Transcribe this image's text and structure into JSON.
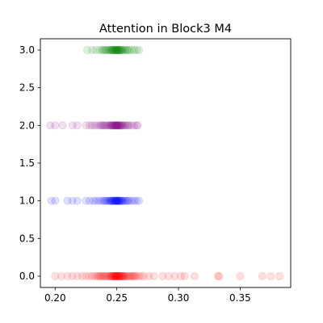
{
  "chart_data": {
    "type": "scatter",
    "title": "Attention in Block3 M4",
    "xlabel": "",
    "ylabel": "",
    "xlim": [
      0.188,
      0.391
    ],
    "ylim": [
      -0.15,
      3.15
    ],
    "xticks": [
      0.2,
      0.25,
      0.3,
      0.35
    ],
    "xtick_labels": [
      "0.20",
      "0.25",
      "0.30",
      "0.35"
    ],
    "yticks": [
      0.0,
      0.5,
      1.0,
      1.5,
      2.0,
      2.5,
      3.0
    ],
    "ytick_labels": [
      "0.0",
      "0.5",
      "1.0",
      "1.5",
      "2.0",
      "2.5",
      "3.0"
    ],
    "grid": false,
    "legend": "none",
    "series": [
      {
        "y": 0,
        "color": "#ff0000",
        "alpha": 0.12,
        "x": [
          0.2,
          0.205,
          0.21,
          0.214,
          0.218,
          0.222,
          0.225,
          0.228,
          0.23,
          0.232,
          0.234,
          0.235,
          0.236,
          0.237,
          0.238,
          0.239,
          0.24,
          0.241,
          0.242,
          0.243,
          0.244,
          0.245,
          0.245,
          0.246,
          0.246,
          0.247,
          0.247,
          0.248,
          0.248,
          0.248,
          0.249,
          0.249,
          0.249,
          0.25,
          0.25,
          0.25,
          0.25,
          0.251,
          0.251,
          0.251,
          0.252,
          0.252,
          0.252,
          0.253,
          0.253,
          0.254,
          0.254,
          0.255,
          0.255,
          0.256,
          0.256,
          0.257,
          0.258,
          0.259,
          0.26,
          0.261,
          0.262,
          0.263,
          0.264,
          0.265,
          0.266,
          0.268,
          0.27,
          0.272,
          0.276,
          0.28,
          0.287,
          0.292,
          0.297,
          0.302,
          0.305,
          0.313,
          0.332,
          0.333,
          0.35,
          0.368,
          0.375,
          0.382
        ]
      },
      {
        "y": 1,
        "color": "#0000ff",
        "alpha": 0.12,
        "x": [
          0.197,
          0.2,
          0.21,
          0.214,
          0.218,
          0.225,
          0.228,
          0.231,
          0.233,
          0.235,
          0.237,
          0.239,
          0.24,
          0.241,
          0.242,
          0.243,
          0.244,
          0.245,
          0.245,
          0.246,
          0.246,
          0.247,
          0.247,
          0.248,
          0.248,
          0.249,
          0.249,
          0.249,
          0.25,
          0.25,
          0.25,
          0.251,
          0.251,
          0.251,
          0.252,
          0.252,
          0.253,
          0.253,
          0.254,
          0.254,
          0.255,
          0.256,
          0.257,
          0.258,
          0.259,
          0.26,
          0.262,
          0.264,
          0.266,
          0.268
        ]
      },
      {
        "y": 2,
        "color": "#800080",
        "alpha": 0.12,
        "x": [
          0.196,
          0.2,
          0.206,
          0.214,
          0.218,
          0.225,
          0.228,
          0.23,
          0.232,
          0.234,
          0.236,
          0.237,
          0.238,
          0.239,
          0.24,
          0.241,
          0.242,
          0.243,
          0.244,
          0.245,
          0.245,
          0.246,
          0.246,
          0.247,
          0.247,
          0.248,
          0.248,
          0.249,
          0.249,
          0.249,
          0.25,
          0.25,
          0.25,
          0.251,
          0.251,
          0.251,
          0.252,
          0.252,
          0.253,
          0.253,
          0.254,
          0.254,
          0.255,
          0.256,
          0.257,
          0.258,
          0.259,
          0.26,
          0.262,
          0.264,
          0.266,
          0.267
        ]
      },
      {
        "y": 3,
        "color": "#008000",
        "alpha": 0.12,
        "x": [
          0.226,
          0.23,
          0.233,
          0.236,
          0.238,
          0.239,
          0.24,
          0.241,
          0.242,
          0.243,
          0.244,
          0.245,
          0.245,
          0.246,
          0.246,
          0.247,
          0.247,
          0.248,
          0.248,
          0.249,
          0.249,
          0.249,
          0.25,
          0.25,
          0.25,
          0.251,
          0.251,
          0.251,
          0.252,
          0.252,
          0.253,
          0.253,
          0.254,
          0.254,
          0.255,
          0.256,
          0.257,
          0.258,
          0.259,
          0.26,
          0.262,
          0.264,
          0.266,
          0.268
        ]
      }
    ]
  }
}
